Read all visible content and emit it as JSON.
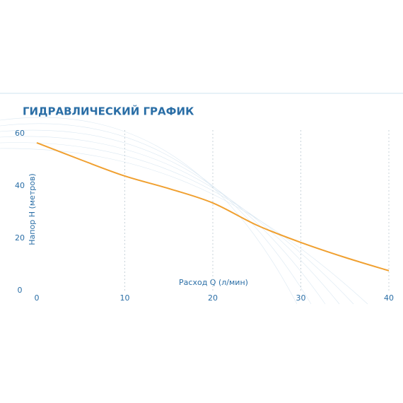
{
  "chart_data": {
    "type": "line",
    "title": "ГИДРАВЛИЧЕСКИЙ ГРАФИК",
    "x_label": "Расход Q (л/мин)",
    "y_label": "Напор H (метров)",
    "x": [
      0,
      5,
      10,
      15,
      20,
      25,
      30,
      35,
      40
    ],
    "series": [
      {
        "name": "H",
        "color": "#f0a030",
        "values": [
          56.5,
          50,
          43.8,
          39,
          33.5,
          25,
          18.4,
          12.7,
          7.6
        ]
      }
    ],
    "xlim": [
      0,
      40
    ],
    "xticks": [
      0,
      10,
      20,
      30,
      40
    ],
    "ylim": [
      0,
      60
    ],
    "yticks": [
      0,
      20,
      40,
      60
    ],
    "grid": true
  }
}
